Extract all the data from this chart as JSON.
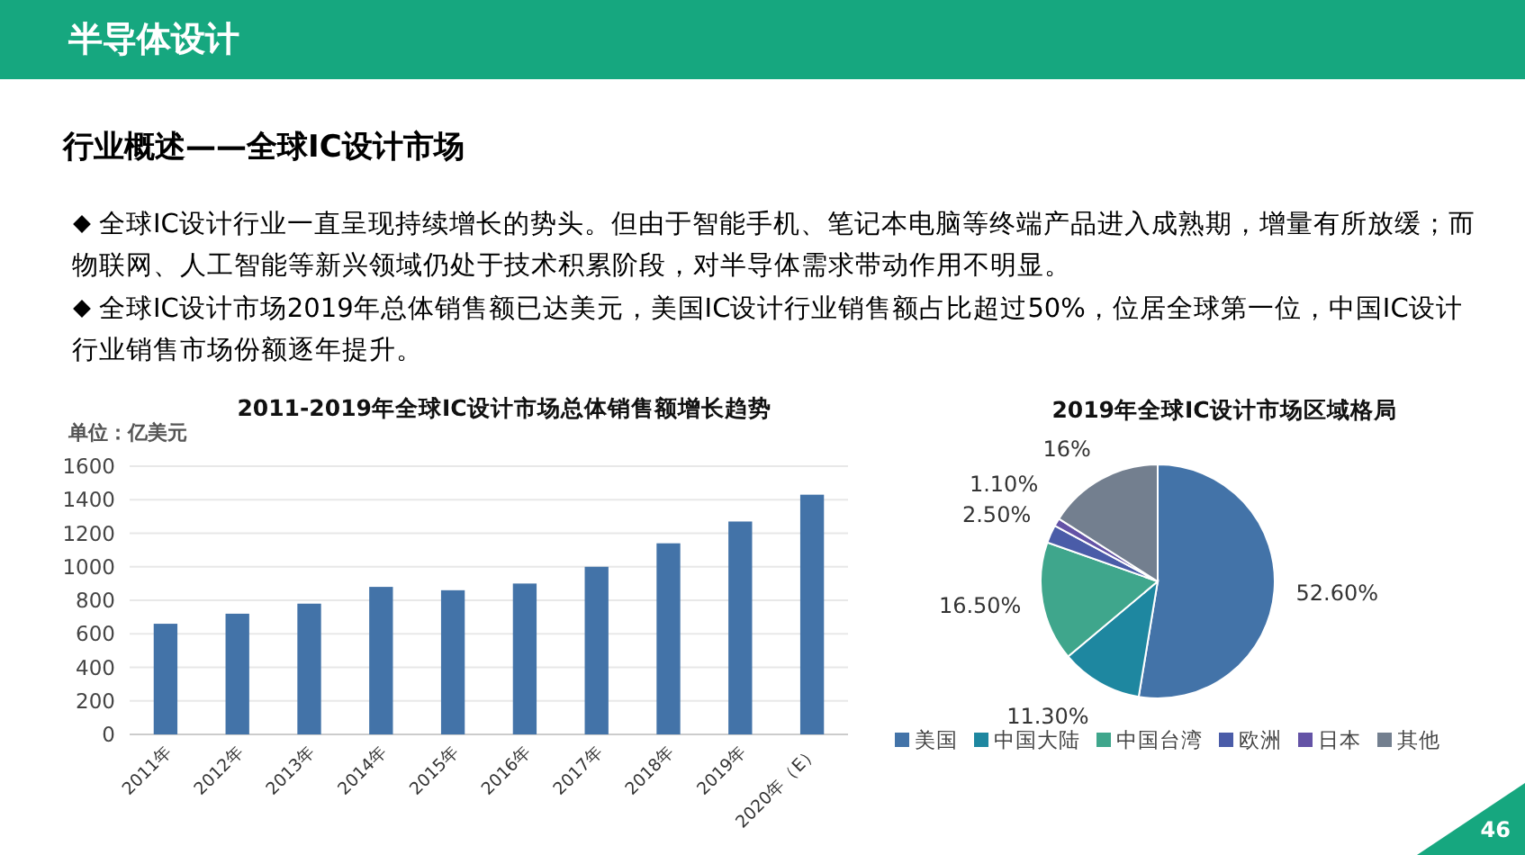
{
  "chart_data": [
    {
      "type": "other",
      "title": "半导体设计",
      "subtitle": "行业概述——全球IC设计市场",
      "annotations": [
        "全球IC设计行业一直呈现持续增长的势头。但由于智能手机、笔记本电脑等终端产品进入成熟期，增量有所放缓；而物联网、人工智能等新兴领域仍处于技术积累阶段，对半导体需求带动作用不明显。",
        "全球IC设计市场2019年总体销售额已达美元，美国IC设计行业销售额占比超过50%，位居全球第一位，中国IC设计行业销售市场份额逐年提升。",
        "46"
      ]
    },
    {
      "type": "bar",
      "title": "2011-2019年全球IC设计市场总体销售额增长趋势",
      "ylabel": "单位：亿美元",
      "categories": [
        "2011年",
        "2012年",
        "2013年",
        "2014年",
        "2015年",
        "2016年",
        "2017年",
        "2018年",
        "2019年",
        "2020年（E）"
      ],
      "values": [
        660,
        720,
        780,
        880,
        860,
        900,
        1000,
        1140,
        1270,
        1430
      ],
      "color": "#4373a8",
      "ylim": [
        0,
        1600
      ],
      "yticks": [
        0,
        200,
        400,
        600,
        800,
        1000,
        1200,
        1400,
        1600
      ],
      "grid": "y"
    },
    {
      "type": "pie",
      "title": "2019年全球IC设计市场区域格局",
      "categories": [
        "美国",
        "中国大陆",
        "中国台湾",
        "欧洲",
        "日本",
        "其他"
      ],
      "values": [
        52.6,
        11.3,
        16.5,
        2.5,
        1.1,
        16
      ],
      "value_labels": [
        "52.60%",
        "11.30%",
        "16.50%",
        "2.50%",
        "1.10%",
        "16%"
      ],
      "colors": [
        "#4373a8",
        "#1e87a0",
        "#3fa68c",
        "#4a5ca8",
        "#6453a6",
        "#737f8f"
      ],
      "legend": "bottom"
    }
  ]
}
